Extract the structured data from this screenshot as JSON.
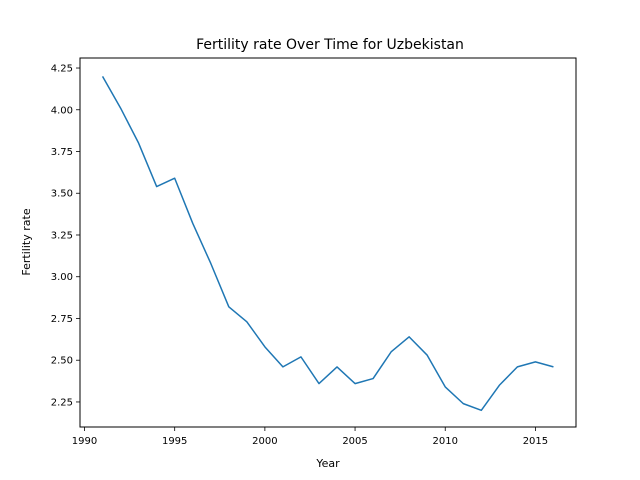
{
  "chart_data": {
    "type": "line",
    "title": "Fertility rate Over Time for Uzbekistan",
    "xlabel": "Year",
    "ylabel": "Fertility rate",
    "xlim": [
      1989.75,
      2017.25
    ],
    "ylim": [
      2.1,
      4.31
    ],
    "x_ticks": [
      1990,
      1995,
      2000,
      2005,
      2010,
      2015
    ],
    "y_ticks": [
      2.25,
      2.5,
      2.75,
      3.0,
      3.25,
      3.5,
      3.75,
      4.0,
      4.25
    ],
    "y_tick_labels": [
      "2.25",
      "2.50",
      "2.75",
      "3.00",
      "3.25",
      "3.50",
      "3.75",
      "4.00",
      "4.25"
    ],
    "grid": false,
    "color": "#1f77b4",
    "series": [
      {
        "x": [
          1991,
          1992,
          1993,
          1994,
          1995,
          1996,
          1997,
          1998,
          1999,
          2000,
          2001,
          2002,
          2003,
          2004,
          2005,
          2006,
          2007,
          2008,
          2009,
          2010,
          2011,
          2012,
          2013,
          2014,
          2015,
          2016
        ],
        "values": [
          4.2,
          4.01,
          3.8,
          3.54,
          3.59,
          3.32,
          3.08,
          2.82,
          2.73,
          2.58,
          2.46,
          2.52,
          2.36,
          2.46,
          2.36,
          2.39,
          2.55,
          2.64,
          2.53,
          2.34,
          2.24,
          2.2,
          2.35,
          2.46,
          2.49,
          2.46
        ]
      }
    ]
  }
}
